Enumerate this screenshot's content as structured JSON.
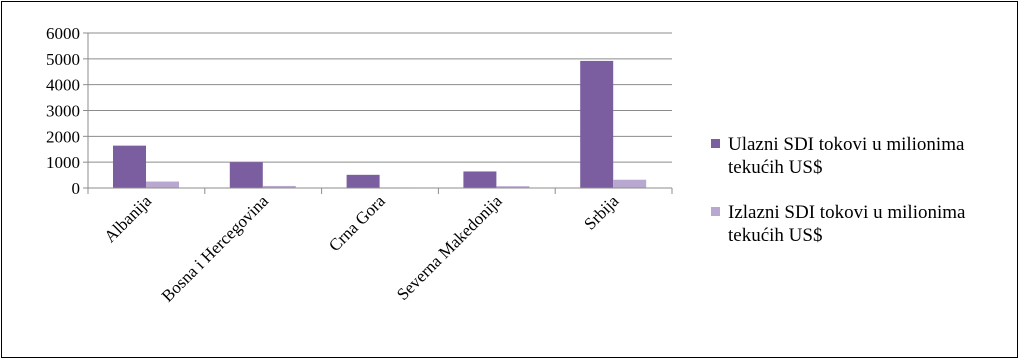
{
  "chart_data": {
    "type": "bar",
    "title": "",
    "xlabel": "",
    "ylabel": "",
    "categories": [
      "Albanija",
      "Bosna i Hercegovina",
      "Crna Gora",
      "Severna Makedonija",
      "Srbija"
    ],
    "series": [
      {
        "name": "Ulazni SDI tokovi u milionima tekućih US$",
        "name_lines": [
          "Ulazni SDI tokovi u milionima",
          "tekućih US$"
        ],
        "color": "#7b5ea0",
        "values": [
          1640,
          1000,
          510,
          640,
          4920
        ]
      },
      {
        "name": "Izlazni SDI tokovi u milionima tekućih US$",
        "name_lines": [
          "Izlazni SDI tokovi u milionima",
          "tekućih US$"
        ],
        "color": "#b8a8cf",
        "values": [
          250,
          80,
          20,
          70,
          320
        ]
      }
    ],
    "ylim": [
      0,
      6000
    ],
    "yticks": [
      0,
      1000,
      2000,
      3000,
      4000,
      5000,
      6000
    ],
    "grid": true,
    "legend": "right"
  }
}
